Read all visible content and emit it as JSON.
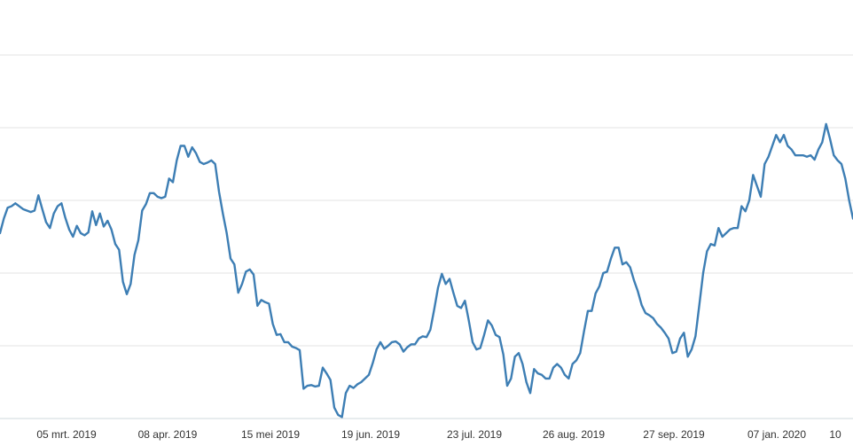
{
  "chart_data": {
    "type": "line",
    "title": "",
    "xlabel": "",
    "ylabel": "",
    "grid": true,
    "legend": "none",
    "line_color": "#3d7eb4",
    "grid_color": "#e3e3e3",
    "axis_color": "#cfd8dc",
    "text_color": "#333333",
    "ylim": [
      0,
      6
    ],
    "ytick_values": [
      0,
      1,
      2,
      3,
      4,
      5
    ],
    "x_tick_labels": [
      "05 mrt. 2019",
      "08 apr. 2019",
      "15 mei 2019",
      "19 jun. 2019",
      "23 jul. 2019",
      "26 aug. 2019",
      "27 sep. 2019",
      "07 jan. 2020",
      "10"
    ],
    "series": [
      {
        "values": [
          2.55,
          2.75,
          2.9,
          2.92,
          2.96,
          2.92,
          2.88,
          2.86,
          2.84,
          2.86,
          3.07,
          2.88,
          2.7,
          2.62,
          2.82,
          2.92,
          2.96,
          2.76,
          2.6,
          2.5,
          2.65,
          2.55,
          2.52,
          2.56,
          2.85,
          2.66,
          2.82,
          2.64,
          2.72,
          2.6,
          2.4,
          2.32,
          1.88,
          1.71,
          1.85,
          2.25,
          2.45,
          2.86,
          2.95,
          3.1,
          3.1,
          3.05,
          3.03,
          3.05,
          3.3,
          3.25,
          3.55,
          3.75,
          3.75,
          3.6,
          3.73,
          3.65,
          3.53,
          3.5,
          3.52,
          3.55,
          3.5,
          3.12,
          2.82,
          2.55,
          2.2,
          2.12,
          1.73,
          1.85,
          2.02,
          2.05,
          1.98,
          1.55,
          1.63,
          1.6,
          1.58,
          1.3,
          1.15,
          1.16,
          1.05,
          1.05,
          0.99,
          0.97,
          0.94,
          0.41,
          0.45,
          0.46,
          0.44,
          0.45,
          0.7,
          0.62,
          0.53,
          0.15,
          0.05,
          0.02,
          0.35,
          0.45,
          0.42,
          0.47,
          0.5,
          0.55,
          0.6,
          0.76,
          0.95,
          1.05,
          0.96,
          1.0,
          1.05,
          1.06,
          1.02,
          0.92,
          0.98,
          1.02,
          1.02,
          1.1,
          1.13,
          1.12,
          1.22,
          1.5,
          1.8,
          1.99,
          1.85,
          1.92,
          1.73,
          1.55,
          1.52,
          1.62,
          1.35,
          1.05,
          0.95,
          0.97,
          1.15,
          1.35,
          1.28,
          1.15,
          1.12,
          0.88,
          0.45,
          0.55,
          0.85,
          0.9,
          0.75,
          0.5,
          0.35,
          0.68,
          0.62,
          0.6,
          0.55,
          0.55,
          0.7,
          0.75,
          0.7,
          0.6,
          0.55,
          0.75,
          0.8,
          0.9,
          1.2,
          1.48,
          1.48,
          1.72,
          1.82,
          2.0,
          2.02,
          2.2,
          2.35,
          2.35,
          2.12,
          2.15,
          2.08,
          1.9,
          1.75,
          1.56,
          1.45,
          1.42,
          1.38,
          1.3,
          1.25,
          1.18,
          1.1,
          0.9,
          0.92,
          1.1,
          1.18,
          0.85,
          0.95,
          1.13,
          1.56,
          2.0,
          2.3,
          2.4,
          2.38,
          2.62,
          2.5,
          2.55,
          2.6,
          2.62,
          2.62,
          2.92,
          2.85,
          3.0,
          3.35,
          3.2,
          3.05,
          3.5,
          3.6,
          3.75,
          3.9,
          3.8,
          3.9,
          3.75,
          3.7,
          3.62,
          3.62,
          3.62,
          3.6,
          3.62,
          3.56,
          3.7,
          3.8,
          4.05,
          3.85,
          3.62,
          3.55,
          3.5,
          3.3,
          3.0,
          2.75
        ]
      }
    ]
  }
}
